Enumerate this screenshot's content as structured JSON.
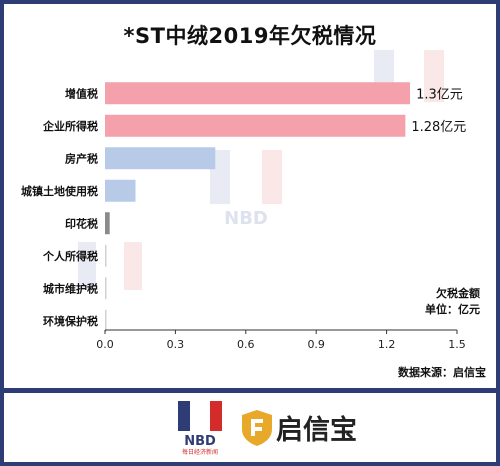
{
  "chart_data": {
    "type": "bar",
    "orientation": "horizontal",
    "title": "*ST中绒2019年欠税情况",
    "categories": [
      "增值税",
      "企业所得税",
      "房产税",
      "城镇土地使用税",
      "印花税",
      "个人所得税",
      "城市维护税",
      "环境保护税"
    ],
    "values": [
      1.3,
      1.28,
      0.47,
      0.13,
      0.02,
      0.002,
      0.002,
      0.001
    ],
    "data_labels": [
      "1.3亿元",
      "1.28亿元",
      "",
      "",
      "",
      "",
      "",
      ""
    ],
    "bar_colors": [
      "#f4a1ab",
      "#f4a1ab",
      "#b7cbe9",
      "#b7cbe9",
      "#8a8a8a",
      "#d0d0d0",
      "#d0d0d0",
      "#d0d0d0"
    ],
    "xlim": [
      0,
      1.5
    ],
    "x_ticks": [
      "0.0",
      "0.3",
      "0.6",
      "0.9",
      "1.2",
      "1.5"
    ],
    "grid": false,
    "legend_note": [
      "欠税金额",
      "单位：亿元"
    ],
    "source": "数据来源：启信宝"
  },
  "footer": {
    "nbd_logo_text": "NBD",
    "nbd_logo_subtext": "每日经济新闻",
    "brand_name": "启信宝"
  },
  "colors": {
    "frame": "#2f3d76",
    "nbd_red": "#d42b2b",
    "nbd_blue": "#2f3d76",
    "qxb_gold": "#e8a92a"
  }
}
